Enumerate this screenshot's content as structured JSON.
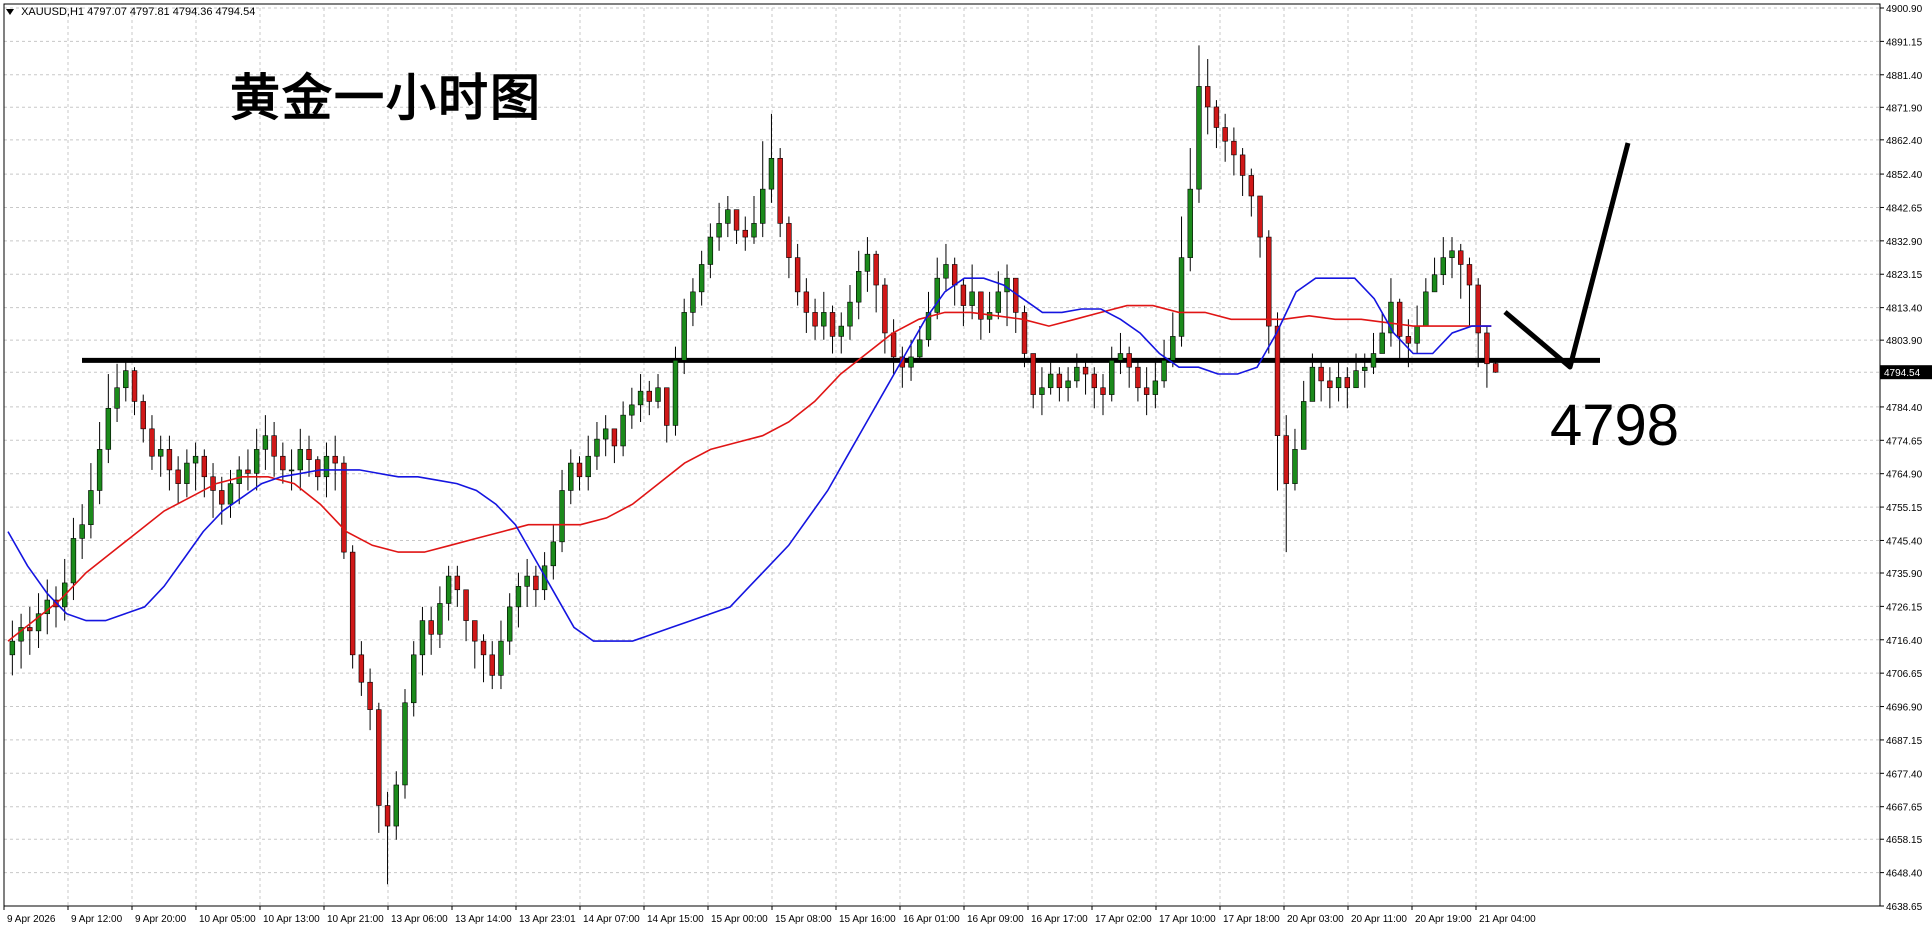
{
  "header": {
    "symbol": "XAUUSD,H1",
    "ohlc": "4797.07 4797.81 4794.36 4794.54"
  },
  "annotation": {
    "title": "黄金一小时图",
    "level_label": "4798"
  },
  "colors": {
    "bull_candle": "#1b8a1b",
    "bear_candle": "#d01818",
    "wick": "#000000",
    "fast_ma": "#1515e0",
    "slow_ma": "#e01515",
    "grid": "#c8c8c8",
    "background": "#ffffff",
    "price_tag_bg": "#000000",
    "price_tag_fg": "#ffffff"
  },
  "chart_data": {
    "type": "candlestick",
    "symbol": "XAUUSD",
    "timeframe": "H1",
    "ylim": [
      4638.65,
      4900.9
    ],
    "y_ticks": [
      "4900.90",
      "4891.15",
      "4881.40",
      "4871.90",
      "4862.40",
      "4852.40",
      "4842.65",
      "4832.90",
      "4823.15",
      "4813.40",
      "4803.90",
      "4794.54",
      "4784.40",
      "4774.65",
      "4764.90",
      "4755.15",
      "4745.40",
      "4735.90",
      "4726.15",
      "4716.40",
      "4706.65",
      "4696.90",
      "4687.15",
      "4677.40",
      "4667.65",
      "4658.15",
      "4648.40",
      "4638.65"
    ],
    "x_ticks": [
      "9 Apr 2026",
      "9 Apr 12:00",
      "9 Apr 20:00",
      "10 Apr 05:00",
      "10 Apr 13:00",
      "10 Apr 21:00",
      "13 Apr 06:00",
      "13 Apr 14:00",
      "13 Apr 23:01",
      "14 Apr 07:00",
      "14 Apr 15:00",
      "15 Apr 00:00",
      "15 Apr 08:00",
      "15 Apr 16:00",
      "16 Apr 01:00",
      "16 Apr 09:00",
      "16 Apr 17:00",
      "17 Apr 02:00",
      "17 Apr 10:00",
      "17 Apr 18:00",
      "20 Apr 03:00",
      "20 Apr 11:00",
      "20 Apr 19:00",
      "21 Apr 04:00"
    ],
    "current_price": 4794.54,
    "support_level": 4798,
    "closes": [
      4716,
      4720,
      4719,
      4724,
      4728,
      4726,
      4733,
      4746,
      4750,
      4760,
      4772,
      4784,
      4790,
      4795,
      4786,
      4778,
      4770,
      4772,
      4766,
      4762,
      4768,
      4770,
      4764,
      4760,
      4756,
      4762,
      4766,
      4765,
      4772,
      4776,
      4770,
      4766,
      4766,
      4772,
      4769,
      4764,
      4770,
      4768,
      4742,
      4712,
      4704,
      4696,
      4668,
      4662,
      4674,
      4698,
      4712,
      4722,
      4718,
      4727,
      4735,
      4731,
      4722,
      4716,
      4712,
      4706,
      4716,
      4726,
      4732,
      4735,
      4731,
      4738,
      4745,
      4760,
      4768,
      4764,
      4770,
      4775,
      4778,
      4773,
      4782,
      4785,
      4789,
      4786,
      4790,
      4779,
      4798,
      4812,
      4818,
      4826,
      4834,
      4838,
      4842,
      4836,
      4834,
      4838,
      4848,
      4857,
      4838,
      4828,
      4818,
      4812,
      4808,
      4812,
      4805,
      4808,
      4815,
      4824,
      4829,
      4820,
      4806,
      4799,
      4796,
      4799,
      4804,
      4812,
      4822,
      4826,
      4820,
      4814,
      4818,
      4810,
      4812,
      4818,
      4822,
      4812,
      4800,
      4788,
      4790,
      4794,
      4790,
      4792,
      4796,
      4794,
      4790,
      4788,
      4798,
      4800,
      4796,
      4790,
      4788,
      4792,
      4798,
      4805,
      4828,
      4848,
      4878,
      4872,
      4866,
      4862,
      4858,
      4852,
      4846,
      4834,
      4808,
      4776,
      4762,
      4772,
      4786,
      4796,
      4792,
      4790,
      4793,
      4790,
      4795,
      4796,
      4800,
      4806,
      4815,
      4805,
      4803,
      4808,
      4818,
      4823,
      4828,
      4830,
      4826,
      4820,
      4806,
      4797,
      4794.54
    ],
    "opens": [
      4712,
      4716,
      4720,
      4719,
      4724,
      4728,
      4726,
      4733,
      4746,
      4750,
      4760,
      4772,
      4784,
      4790,
      4795,
      4786,
      4778,
      4770,
      4772,
      4766,
      4762,
      4768,
      4770,
      4764,
      4760,
      4756,
      4762,
      4766,
      4765,
      4772,
      4776,
      4770,
      4766,
      4766,
      4772,
      4769,
      4764,
      4770,
      4768,
      4742,
      4712,
      4704,
      4696,
      4668,
      4662,
      4674,
      4698,
      4712,
      4722,
      4718,
      4727,
      4735,
      4731,
      4722,
      4716,
      4712,
      4706,
      4716,
      4726,
      4732,
      4735,
      4731,
      4738,
      4745,
      4760,
      4768,
      4764,
      4770,
      4775,
      4778,
      4773,
      4782,
      4785,
      4789,
      4786,
      4790,
      4779,
      4798,
      4812,
      4818,
      4826,
      4834,
      4838,
      4842,
      4836,
      4834,
      4838,
      4848,
      4857,
      4838,
      4828,
      4818,
      4812,
      4808,
      4812,
      4805,
      4808,
      4815,
      4824,
      4829,
      4820,
      4806,
      4799,
      4796,
      4799,
      4804,
      4812,
      4822,
      4826,
      4820,
      4814,
      4818,
      4810,
      4812,
      4818,
      4822,
      4812,
      4800,
      4788,
      4790,
      4794,
      4790,
      4792,
      4796,
      4794,
      4790,
      4788,
      4798,
      4800,
      4796,
      4790,
      4788,
      4792,
      4798,
      4805,
      4828,
      4848,
      4878,
      4872,
      4866,
      4862,
      4858,
      4852,
      4846,
      4834,
      4808,
      4776,
      4762,
      4772,
      4786,
      4796,
      4792,
      4790,
      4793,
      4790,
      4795,
      4796,
      4800,
      4806,
      4815,
      4805,
      4803,
      4808,
      4818,
      4823,
      4828,
      4830,
      4826,
      4820,
      4806,
      4797.07
    ],
    "highs": [
      4722,
      4724,
      4726,
      4730,
      4734,
      4732,
      4740,
      4752,
      4756,
      4768,
      4780,
      4794,
      4797,
      4798,
      4796,
      4788,
      4782,
      4776,
      4776,
      4770,
      4772,
      4774,
      4772,
      4768,
      4764,
      4766,
      4770,
      4772,
      4778,
      4782,
      4780,
      4774,
      4772,
      4778,
      4776,
      4770,
      4774,
      4776,
      4770,
      4744,
      4716,
      4708,
      4698,
      4672,
      4678,
      4702,
      4716,
      4726,
      4726,
      4732,
      4738,
      4738,
      4730,
      4722,
      4718,
      4716,
      4722,
      4730,
      4736,
      4740,
      4738,
      4742,
      4750,
      4766,
      4772,
      4770,
      4776,
      4780,
      4782,
      4778,
      4786,
      4790,
      4794,
      4792,
      4794,
      4790,
      4802,
      4816,
      4822,
      4830,
      4838,
      4844,
      4846,
      4842,
      4840,
      4846,
      4862,
      4870,
      4860,
      4840,
      4832,
      4822,
      4816,
      4818,
      4814,
      4812,
      4820,
      4830,
      4834,
      4830,
      4822,
      4810,
      4802,
      4804,
      4808,
      4818,
      4828,
      4832,
      4828,
      4822,
      4826,
      4818,
      4818,
      4824,
      4826,
      4820,
      4814,
      4800,
      4796,
      4798,
      4796,
      4796,
      4800,
      4798,
      4796,
      4794,
      4802,
      4806,
      4802,
      4798,
      4796,
      4798,
      4804,
      4812,
      4840,
      4860,
      4890,
      4886,
      4874,
      4870,
      4866,
      4860,
      4854,
      4846,
      4836,
      4812,
      4782,
      4778,
      4792,
      4800,
      4798,
      4796,
      4798,
      4796,
      4800,
      4800,
      4806,
      4812,
      4822,
      4816,
      4810,
      4814,
      4822,
      4828,
      4834,
      4834,
      4832,
      4828,
      4822,
      4808,
      4797.81
    ],
    "lows": [
      4706,
      4708,
      4712,
      4714,
      4718,
      4720,
      4722,
      4728,
      4740,
      4746,
      4756,
      4768,
      4780,
      4786,
      4782,
      4774,
      4766,
      4764,
      4760,
      4756,
      4758,
      4760,
      4758,
      4752,
      4750,
      4752,
      4756,
      4760,
      4760,
      4766,
      4764,
      4762,
      4760,
      4760,
      4764,
      4760,
      4758,
      4760,
      4740,
      4708,
      4700,
      4690,
      4660,
      4645,
      4658,
      4670,
      4694,
      4706,
      4712,
      4714,
      4722,
      4726,
      4716,
      4708,
      4704,
      4702,
      4702,
      4712,
      4720,
      4726,
      4726,
      4728,
      4734,
      4742,
      4756,
      4760,
      4760,
      4766,
      4770,
      4768,
      4770,
      4778,
      4780,
      4782,
      4784,
      4774,
      4776,
      4794,
      4808,
      4814,
      4822,
      4830,
      4834,
      4832,
      4830,
      4832,
      4834,
      4844,
      4834,
      4822,
      4814,
      4806,
      4804,
      4804,
      4800,
      4800,
      4804,
      4810,
      4818,
      4812,
      4800,
      4794,
      4790,
      4792,
      4798,
      4802,
      4810,
      4818,
      4814,
      4808,
      4810,
      4804,
      4806,
      4810,
      4808,
      4806,
      4796,
      4784,
      4782,
      4788,
      4786,
      4786,
      4790,
      4788,
      4784,
      4782,
      4786,
      4794,
      4790,
      4786,
      4782,
      4784,
      4790,
      4796,
      4802,
      4824,
      4844,
      4864,
      4860,
      4856,
      4852,
      4846,
      4840,
      4828,
      4800,
      4760,
      4742,
      4760,
      4776,
      4788,
      4786,
      4784,
      4786,
      4784,
      4790,
      4790,
      4794,
      4800,
      4802,
      4798,
      4796,
      4800,
      4812,
      4818,
      4820,
      4822,
      4816,
      4808,
      4796,
      4790,
      4794.36
    ],
    "fast_ma": [
      4748,
      4738,
      4730,
      4724,
      4722,
      4722,
      4724,
      4726,
      4732,
      4740,
      4748,
      4754,
      4758,
      4762,
      4764,
      4765,
      4766,
      4766,
      4766,
      4765,
      4764,
      4764,
      4763,
      4762,
      4760,
      4756,
      4750,
      4740,
      4730,
      4720,
      4716,
      4716,
      4716,
      4718,
      4720,
      4722,
      4724,
      4726,
      4732,
      4738,
      4744,
      4752,
      4760,
      4770,
      4780,
      4790,
      4800,
      4810,
      4818,
      4822,
      4822,
      4820,
      4816,
      4812,
      4812,
      4813,
      4813,
      4810,
      4806,
      4800,
      4796,
      4796,
      4794,
      4794,
      4796,
      4806,
      4818,
      4822,
      4822,
      4822,
      4816,
      4806,
      4800,
      4800,
      4806,
      4808,
      4808
    ],
    "slow_ma": [
      4716,
      4722,
      4728,
      4736,
      4742,
      4748,
      4754,
      4758,
      4762,
      4764,
      4764,
      4762,
      4756,
      4748,
      4744,
      4742,
      4742,
      4744,
      4746,
      4748,
      4750,
      4750,
      4750,
      4752,
      4756,
      4762,
      4768,
      4772,
      4774,
      4776,
      4780,
      4786,
      4794,
      4800,
      4806,
      4810,
      4812,
      4812,
      4811,
      4810,
      4808,
      4810,
      4812,
      4814,
      4814,
      4812,
      4812,
      4810,
      4810,
      4810,
      4811,
      4810,
      4810,
      4809,
      4808,
      4808,
      4808,
      4808
    ]
  }
}
